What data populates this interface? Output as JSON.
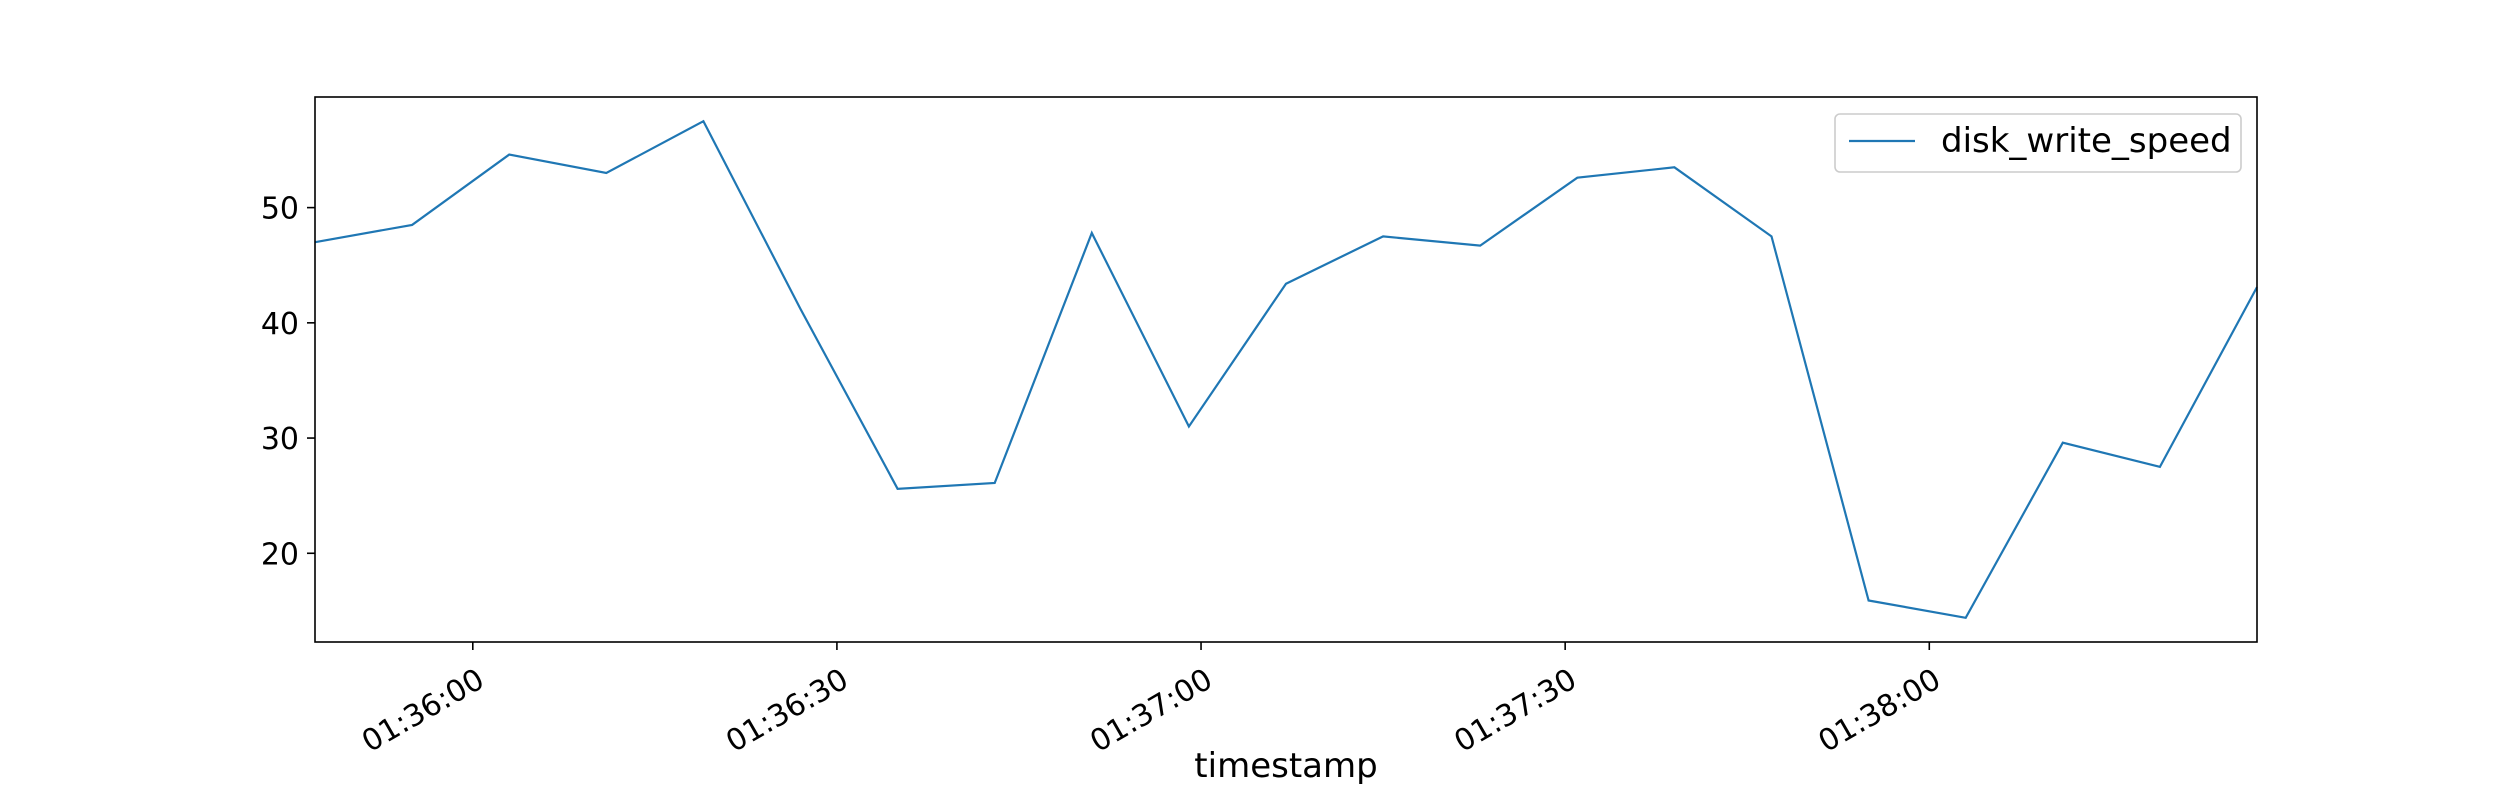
{
  "chart_data": {
    "type": "line",
    "title": "",
    "xlabel": "timestamp",
    "ylabel": "",
    "x": [
      "01:35:47",
      "01:35:55",
      "01:36:03",
      "01:36:11",
      "01:36:19",
      "01:36:27",
      "01:36:35",
      "01:36:43",
      "01:36:51",
      "01:36:59",
      "01:37:07",
      "01:37:15",
      "01:37:23",
      "01:37:31",
      "01:37:39",
      "01:37:47",
      "01:37:55",
      "01:38:03",
      "01:38:11",
      "01:38:19",
      "01:38:27"
    ],
    "x_ticks": [
      "01:36:00",
      "01:36:30",
      "01:37:00",
      "01:37:30",
      "01:38:00"
    ],
    "xlim": [
      "01:35:47",
      "01:38:27"
    ],
    "series": [
      {
        "name": "disk_write_speed",
        "color": "#1f77b4",
        "values": [
          47.0,
          48.5,
          54.6,
          53.0,
          57.5,
          41.2,
          25.6,
          26.1,
          47.8,
          31.0,
          43.4,
          47.5,
          46.7,
          52.6,
          53.5,
          47.5,
          15.9,
          14.4,
          29.6,
          27.5,
          43.1
        ]
      }
    ],
    "y_ticks": [
      20,
      30,
      40,
      50
    ],
    "ylim": [
      12.3,
      59.6
    ],
    "grid": false,
    "legend_position": "top-right"
  }
}
